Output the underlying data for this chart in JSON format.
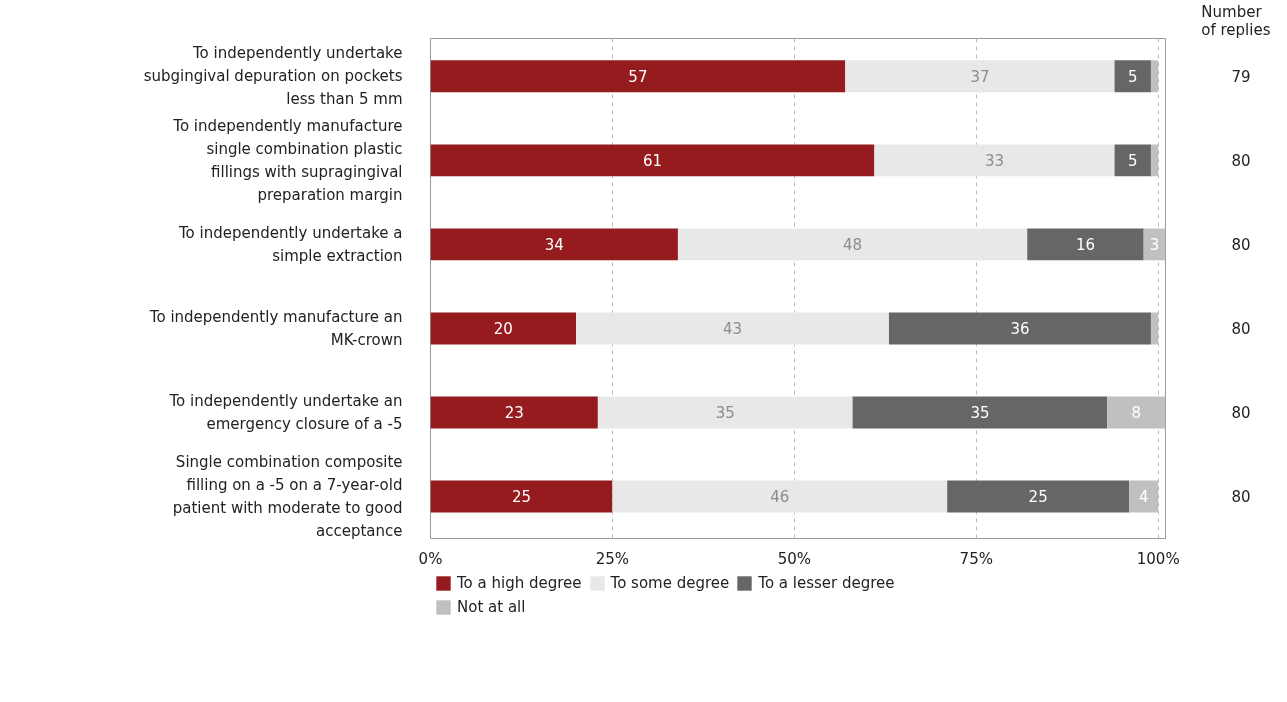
{
  "chart_data": {
    "type": "bar",
    "orientation": "horizontal",
    "stacked": true,
    "categories": [
      "To independently undertake subgingival depuration on pockets less than 5 mm",
      "To independently manufacture single combination plastic fillings with supragingival preparation margin",
      "To independently undertake a simple extraction",
      "To independently manufacture an MK-crown",
      "To independently undertake an emergency closure of a -5",
      "Single combination composite filling on a -5 on a 7-year-old patient with moderate to good acceptance"
    ],
    "series": [
      {
        "name": "To a high degree",
        "color": "#951b1e",
        "values": [
          57,
          61,
          34,
          20,
          23,
          25
        ],
        "value_labels": [
          "57",
          "61",
          "34",
          "20",
          "23",
          "25"
        ]
      },
      {
        "name": "To some degree",
        "color": "#e8e8e8",
        "values": [
          37,
          33,
          48,
          43,
          35,
          46
        ],
        "value_labels": [
          "37",
          "33",
          "48",
          "43",
          "35",
          "46"
        ]
      },
      {
        "name": "To a lesser degree",
        "color": "#666666",
        "values": [
          5,
          5,
          16,
          36,
          35,
          25
        ],
        "value_labels": [
          "5",
          "5",
          "16",
          "36",
          "35",
          "25"
        ]
      },
      {
        "name": "Not at all",
        "color": "#c0c0c0",
        "values": [
          1,
          1,
          3,
          1,
          8,
          4
        ],
        "value_labels": [
          null,
          null,
          "3",
          null,
          "8",
          "4"
        ]
      }
    ],
    "xlim": [
      0,
      101
    ],
    "xticks": [
      {
        "value": 0,
        "label": "0%"
      },
      {
        "value": 25,
        "label": "25%"
      },
      {
        "value": 50,
        "label": "50%"
      },
      {
        "value": 75,
        "label": "75%"
      },
      {
        "value": 100,
        "label": "100%"
      }
    ],
    "grid": "x",
    "legend": "bottom",
    "annotations": [
      "Number of replies",
      "79",
      "80",
      "80",
      "80",
      "80",
      "80"
    ]
  }
}
